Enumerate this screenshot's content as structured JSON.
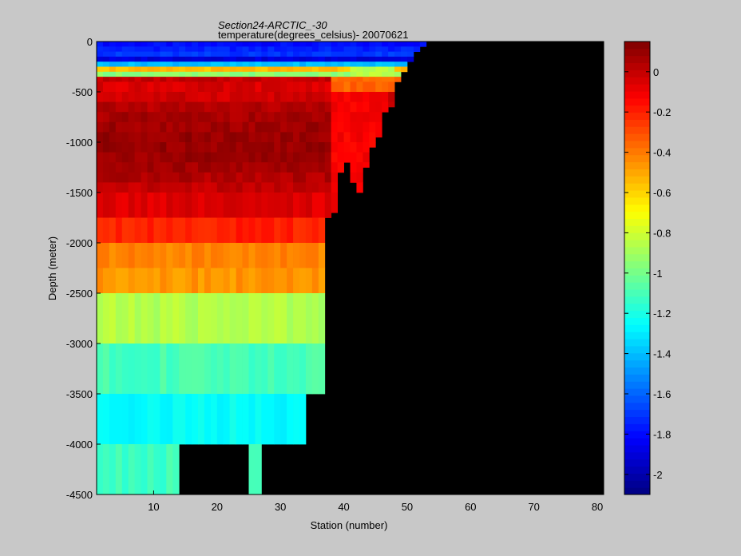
{
  "chart_data": {
    "type": "heatmap",
    "title": "Section24-ARCTIC_-30",
    "subtitle": "temperature(degrees_celsius)- 20070621",
    "xlabel": "Station (number)",
    "ylabel": "Depth (meter)",
    "xlim": [
      1,
      81
    ],
    "ylim": [
      -4500,
      0
    ],
    "x_ticks": [
      "10",
      "20",
      "30",
      "40",
      "50",
      "60",
      "70",
      "80"
    ],
    "x_tick_values": [
      10,
      20,
      30,
      40,
      50,
      60,
      70,
      80
    ],
    "y_ticks": [
      "0",
      "-500",
      "-1000",
      "-1500",
      "-2000",
      "-2500",
      "-3000",
      "-3500",
      "-4000",
      "-4500"
    ],
    "y_tick_values": [
      0,
      -500,
      -1000,
      -1500,
      -2000,
      -2500,
      -3000,
      -3500,
      -4000,
      -4500
    ],
    "colorbar": {
      "min": -2.1,
      "max": 0.15,
      "ticks": [
        "0",
        "-0.2",
        "-0.4",
        "-0.6",
        "-0.8",
        "-1",
        "-1.2",
        "-1.4",
        "-1.6",
        "-1.8",
        "-2"
      ],
      "tick_values": [
        0,
        -0.2,
        -0.4,
        -0.6,
        -0.8,
        -1,
        -1.2,
        -1.4,
        -1.6,
        -1.8,
        -2
      ],
      "colormap": "jet"
    },
    "no_data_color": "#000000",
    "depth_bins_m": [
      0,
      50,
      100,
      150,
      200,
      250,
      300,
      350,
      400,
      500,
      600,
      700,
      800,
      900,
      1000,
      1100,
      1200,
      1300,
      1400,
      1500,
      1750,
      2000,
      2250,
      2500,
      3000,
      3500,
      4000,
      4500
    ],
    "layers": [
      {
        "top": 0,
        "bottom": 50,
        "temp": -1.8
      },
      {
        "top": 50,
        "bottom": 100,
        "temp": -1.75
      },
      {
        "top": 100,
        "bottom": 150,
        "temp": -1.7
      },
      {
        "top": 150,
        "bottom": 200,
        "temp": -1.9
      },
      {
        "top": 200,
        "bottom": 250,
        "temp": -1.4
      },
      {
        "top": 250,
        "bottom": 300,
        "temp": -0.55
      },
      {
        "top": 300,
        "bottom": 350,
        "temp": -0.95
      },
      {
        "top": 350,
        "bottom": 400,
        "temp": 0.0
      },
      {
        "top": 400,
        "bottom": 500,
        "temp": -0.05
      },
      {
        "top": 500,
        "bottom": 600,
        "temp": -0.03
      },
      {
        "top": 600,
        "bottom": 700,
        "temp": 0.03
      },
      {
        "top": 700,
        "bottom": 800,
        "temp": 0.06
      },
      {
        "top": 800,
        "bottom": 900,
        "temp": 0.08
      },
      {
        "top": 900,
        "bottom": 1000,
        "temp": 0.1
      },
      {
        "top": 1000,
        "bottom": 1100,
        "temp": 0.1
      },
      {
        "top": 1100,
        "bottom": 1200,
        "temp": 0.09
      },
      {
        "top": 1200,
        "bottom": 1300,
        "temp": 0.07
      },
      {
        "top": 1300,
        "bottom": 1400,
        "temp": 0.04
      },
      {
        "top": 1400,
        "bottom": 1500,
        "temp": 0.0
      },
      {
        "top": 1500,
        "bottom": 1750,
        "temp": -0.06
      },
      {
        "top": 1750,
        "bottom": 2000,
        "temp": -0.2
      },
      {
        "top": 2000,
        "bottom": 2250,
        "temp": -0.42
      },
      {
        "top": 2250,
        "bottom": 2500,
        "temp": -0.46
      },
      {
        "top": 2500,
        "bottom": 3000,
        "temp": -0.86
      },
      {
        "top": 3000,
        "bottom": 3500,
        "temp": -1.1
      },
      {
        "top": 3500,
        "bottom": 4000,
        "temp": -1.25
      },
      {
        "top": 4000,
        "bottom": 4500,
        "temp": -1.12
      }
    ],
    "station_bottom_depth_m": [
      {
        "from": 1,
        "to": 14,
        "depth": 4500
      },
      {
        "from": 14,
        "to": 25,
        "depth": 4000
      },
      {
        "from": 25,
        "to": 27,
        "depth": 4500
      },
      {
        "from": 27,
        "to": 34,
        "depth": 4000
      },
      {
        "from": 34,
        "to": 37,
        "depth": 3500
      },
      {
        "from": 37,
        "to": 38,
        "depth": 1750
      },
      {
        "from": 38,
        "to": 39,
        "depth": 1700
      },
      {
        "from": 39,
        "to": 40,
        "depth": 1300
      },
      {
        "from": 40,
        "to": 41,
        "depth": 1200
      },
      {
        "from": 41,
        "to": 42,
        "depth": 1400
      },
      {
        "from": 42,
        "to": 43,
        "depth": 1500
      },
      {
        "from": 43,
        "to": 44,
        "depth": 1250
      },
      {
        "from": 44,
        "to": 45,
        "depth": 1050
      },
      {
        "from": 45,
        "to": 46,
        "depth": 950
      },
      {
        "from": 46,
        "to": 47,
        "depth": 700
      },
      {
        "from": 47,
        "to": 48,
        "depth": 650
      },
      {
        "from": 48,
        "to": 49,
        "depth": 400
      },
      {
        "from": 49,
        "to": 50,
        "depth": 300
      },
      {
        "from": 50,
        "to": 51,
        "depth": 200
      },
      {
        "from": 51,
        "to": 52,
        "depth": 100
      },
      {
        "from": 52,
        "to": 53,
        "depth": 50
      }
    ],
    "shelf_water": [
      {
        "from": 38,
        "to": 49,
        "top": 350,
        "bottom": 500,
        "temp": -0.35
      },
      {
        "from": 41,
        "to": 48,
        "top": 250,
        "bottom": 350,
        "temp": -0.85
      },
      {
        "from": 38,
        "to": 47,
        "top": 500,
        "bottom": 1500,
        "temp": -0.12
      }
    ]
  }
}
